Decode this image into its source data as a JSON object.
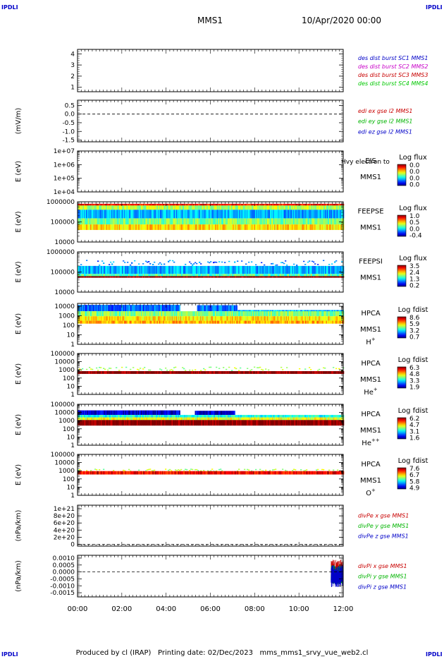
{
  "header": {
    "corner_label": "IPDLI",
    "title": "MMS1",
    "datetime": "10/Apr/2020 00:00"
  },
  "footer": {
    "producer": "Produced by cl (IRAP)",
    "printing": "Printing date: 02/Dec/2023",
    "script": "mms_mms1_srvy_vue_web2.cl"
  },
  "chart_data": {
    "type": "timeseries-stack",
    "x_axis": {
      "range_hours": [
        0,
        12
      ],
      "ticks": [
        0,
        2,
        4,
        6,
        8,
        10,
        12
      ],
      "tick_labels": [
        "00:00",
        "02:00",
        "04:00",
        "06:00",
        "08:00",
        "10:00",
        "12:00"
      ]
    },
    "panels": [
      {
        "type": "line",
        "ylabel": "",
        "y_ticks": [
          1,
          2,
          3,
          4
        ],
        "y_tick_labels": [
          "1",
          "2",
          "3",
          "4"
        ],
        "ylim": [
          0.6,
          4.4
        ],
        "legend": [
          {
            "label": "des dist burst SC1 MMS1",
            "color": "#0000c8"
          },
          {
            "label": "des dist burst SC2 MMS2",
            "color": "#c800c8"
          },
          {
            "label": "des dist burst SC3 MMS3",
            "color": "#c80000"
          },
          {
            "label": "des dist burst SC4 MMS4",
            "color": "#00c800"
          }
        ],
        "series": []
      },
      {
        "type": "line",
        "ylabel": "(mV/m)",
        "y_ticks": [
          0.5,
          0.0,
          -0.5,
          -1.0,
          -1.5
        ],
        "y_tick_labels": [
          "0.5",
          "0.0",
          "-0.5",
          "-1.0",
          "-1.5"
        ],
        "ylim": [
          -1.6,
          0.8
        ],
        "zero_line": true,
        "legend": [
          {
            "label": "edi ex gse l2 MMS1",
            "color": "#c80000"
          },
          {
            "label": "edi ey gse l2 MMS1",
            "color": "#00b400"
          },
          {
            "label": "edi ez gse l2 MMS1",
            "color": "#0000c8"
          }
        ],
        "series": []
      },
      {
        "type": "spectrogram",
        "ylabel": "E (eV)",
        "y_log": true,
        "ylim": [
          10000,
          10000000
        ],
        "y_ticks": [
          10000,
          100000,
          1000000,
          10000000
        ],
        "y_tick_labels": [
          "1e+04",
          "1e+05",
          "1e+06",
          "1e+07"
        ],
        "instrument": [
          "EIS",
          "MMS1"
        ],
        "overlay_text": "Hvy electron to",
        "colorbar_title": "Log flux",
        "colorbar_ticks": [
          "0.0",
          "0.0",
          "0.0",
          "0.0"
        ],
        "bands": []
      },
      {
        "type": "spectrogram",
        "ylabel": "E (eV)",
        "y_log": true,
        "ylim": [
          10000,
          1000000
        ],
        "y_ticks": [
          10000,
          100000,
          1000000
        ],
        "y_tick_labels": [
          "10000",
          "100000",
          "1000000"
        ],
        "instrument": [
          "FEEPSE",
          "MMS1"
        ],
        "colorbar_title": "Log flux",
        "colorbar_ticks": [
          "1.0",
          "0.5",
          "0.0",
          "-0.4"
        ],
        "bands": [
          {
            "t": [
              0,
              12
            ],
            "e": [
              650000,
              800000
            ],
            "level": 0.88
          },
          {
            "t": [
              0,
              12
            ],
            "e": [
              400000,
              650000
            ],
            "level": 0.55
          },
          {
            "t": [
              0,
              12
            ],
            "e": [
              150000,
              400000
            ],
            "level": 0.3
          },
          {
            "t": [
              0,
              12
            ],
            "e": [
              75000,
              150000
            ],
            "level": 0.5
          },
          {
            "t": [
              0,
              12
            ],
            "e": [
              40000,
              75000
            ],
            "level": 0.66
          }
        ]
      },
      {
        "type": "spectrogram",
        "ylabel": "E (eV)",
        "y_log": true,
        "ylim": [
          10000,
          1000000
        ],
        "y_ticks": [
          10000,
          100000,
          1000000
        ],
        "y_tick_labels": [
          "10000",
          "100000",
          "1000000"
        ],
        "instrument": [
          "FEEPSI",
          "MMS1"
        ],
        "colorbar_title": "Log flux",
        "colorbar_ticks": [
          "3.5",
          "2.4",
          "1.3",
          "0.2"
        ],
        "bands": [
          {
            "t": [
              0,
              12
            ],
            "e": [
              200000,
              400000
            ],
            "level": 0.25,
            "sparse": true
          },
          {
            "t": [
              0,
              12
            ],
            "e": [
              80000,
              200000
            ],
            "level": 0.3
          },
          {
            "t": [
              0,
              12
            ],
            "e": [
              62000,
              80000
            ],
            "level": 0.45
          },
          {
            "t": [
              0,
              12
            ],
            "e": [
              52000,
              62000
            ],
            "level": 1.0
          }
        ]
      },
      {
        "type": "spectrogram",
        "ylabel": "E (eV)",
        "y_log": true,
        "ylim": [
          1,
          20000
        ],
        "y_ticks": [
          1,
          10,
          100,
          1000,
          10000
        ],
        "y_tick_labels": [
          "1",
          "10",
          "100",
          "1000",
          "10000"
        ],
        "instrument": [
          "HPCA",
          "MMS1"
        ],
        "species": "H",
        "species_sup": "+",
        "colorbar_title": "Log fdist",
        "colorbar_ticks": [
          "8.6",
          "5.9",
          "3.2",
          "0.7"
        ],
        "bands": [
          {
            "t": [
              0,
              4.6
            ],
            "e": [
              3000,
              14000
            ],
            "level": 0.22
          },
          {
            "t": [
              5.4,
              7.2
            ],
            "e": [
              3000,
              13000
            ],
            "level": 0.22
          },
          {
            "t": [
              7.2,
              12
            ],
            "e": [
              1500,
              4000
            ],
            "level": 0.3
          },
          {
            "t": [
              0,
              12
            ],
            "e": [
              900,
              3000
            ],
            "level": 0.5
          },
          {
            "t": [
              0,
              12
            ],
            "e": [
              300,
              900
            ],
            "level": 0.65
          },
          {
            "t": [
              0,
              12
            ],
            "e": [
              150,
              300
            ],
            "level": 0.7
          }
        ]
      },
      {
        "type": "spectrogram",
        "ylabel": "E (eV)",
        "y_log": true,
        "ylim": [
          1,
          100000
        ],
        "y_ticks": [
          1,
          10,
          100,
          1000,
          10000,
          100000
        ],
        "y_tick_labels": [
          "1",
          "10",
          "100",
          "1000",
          "10000",
          "100000"
        ],
        "instrument": [
          "HPCA",
          "MMS1"
        ],
        "species": "He",
        "species_sup": "+",
        "colorbar_title": "Log fdist",
        "colorbar_ticks": [
          "6.3",
          "4.8",
          "3.3",
          "1.9"
        ],
        "bands": [
          {
            "t": [
              0,
              12
            ],
            "e": [
              700,
              2500
            ],
            "level": 0.55,
            "sparse": true
          },
          {
            "t": [
              0,
              12
            ],
            "e": [
              320,
              700
            ],
            "level": 1.0
          }
        ]
      },
      {
        "type": "spectrogram",
        "ylabel": "E (eV)",
        "y_log": true,
        "ylim": [
          1,
          100000
        ],
        "y_ticks": [
          1,
          10,
          100,
          1000,
          10000,
          100000
        ],
        "y_tick_labels": [
          "1",
          "10",
          "100",
          "1000",
          "10000",
          "100000"
        ],
        "instrument": [
          "HPCA",
          "MMS1"
        ],
        "species": "He",
        "species_sup": "++",
        "colorbar_title": "Log fdist",
        "colorbar_ticks": [
          "6.2",
          "4.7",
          "3.1",
          "1.6"
        ],
        "bands": [
          {
            "t": [
              0,
              4.6
            ],
            "e": [
              5000,
              18000
            ],
            "level": 0.08
          },
          {
            "t": [
              5.3,
              7.1
            ],
            "e": [
              5000,
              16000
            ],
            "level": 0.08
          },
          {
            "t": [
              0,
              12
            ],
            "e": [
              2500,
              5000
            ],
            "level": 0.4
          },
          {
            "t": [
              0,
              12
            ],
            "e": [
              1200,
              2500
            ],
            "level": 0.6
          },
          {
            "t": [
              0,
              12
            ],
            "e": [
              250,
              1200
            ],
            "level": 1.0
          }
        ]
      },
      {
        "type": "spectrogram",
        "ylabel": "E (eV)",
        "y_log": true,
        "ylim": [
          1,
          100000
        ],
        "y_ticks": [
          1,
          10,
          100,
          1000,
          10000,
          100000
        ],
        "y_tick_labels": [
          "1",
          "10",
          "100",
          "1000",
          "10000",
          "100000"
        ],
        "instrument": [
          "HPCA",
          "MMS1"
        ],
        "species": "O",
        "species_sup": "+",
        "colorbar_title": "Log fdist",
        "colorbar_ticks": [
          "7.6",
          "6.7",
          "5.8",
          "4.9"
        ],
        "bands": [
          {
            "t": [
              0,
              12
            ],
            "e": [
              900,
              1800
            ],
            "level": 0.55,
            "sparse": true
          },
          {
            "t": [
              0,
              12
            ],
            "e": [
              350,
              900
            ],
            "level": 0.88
          }
        ]
      },
      {
        "type": "line",
        "ylabel": "(nPa/km)",
        "y_ticks": [
          0,
          2e+20,
          4e+20,
          6e+20,
          8e+20,
          1e+21
        ],
        "y_tick_labels": [
          "0",
          "2e+20",
          "4e+20",
          "6e+20",
          "8e+20",
          "1e+21"
        ],
        "ylim": [
          -5e+19,
          1.1e+21
        ],
        "zero_line": true,
        "legend": [
          {
            "label": "divPe x gse MMS1",
            "color": "#c80000"
          },
          {
            "label": "divPe y gse MMS1",
            "color": "#00b400"
          },
          {
            "label": "divPe z gse MMS1",
            "color": "#0000c8"
          }
        ],
        "series": []
      },
      {
        "type": "line",
        "ylabel": "(nPa/km)",
        "y_ticks": [
          0.001,
          0.0005,
          0.0,
          -0.0005,
          -0.001,
          -0.0015
        ],
        "y_tick_labels": [
          "0.0010",
          "0.0005",
          "0.0000",
          "-0.0005",
          "-0.0010",
          "-0.0015"
        ],
        "ylim": [
          -0.0018,
          0.0012
        ],
        "zero_line": true,
        "legend": [
          {
            "label": "divPi x gse MMS1",
            "color": "#c80000"
          },
          {
            "label": "divPi y gse MMS1",
            "color": "#00b400"
          },
          {
            "label": "divPi z gse MMS1",
            "color": "#0000c8"
          }
        ],
        "series": [
          {
            "name": "divPi x gse MMS1",
            "color": "#c80000",
            "t_range": [
              11.45,
              12.0
            ],
            "amplitude": 0.0009,
            "center": 0.0
          },
          {
            "name": "divPi y gse MMS1",
            "color": "#00b400",
            "t_range": [
              11.45,
              12.0
            ],
            "amplitude": 0.0007,
            "center": -0.0002
          },
          {
            "name": "divPi z gse MMS1",
            "color": "#0000c8",
            "t_range": [
              11.45,
              12.0
            ],
            "amplitude": 0.0008,
            "center": -0.0003
          }
        ]
      }
    ]
  }
}
